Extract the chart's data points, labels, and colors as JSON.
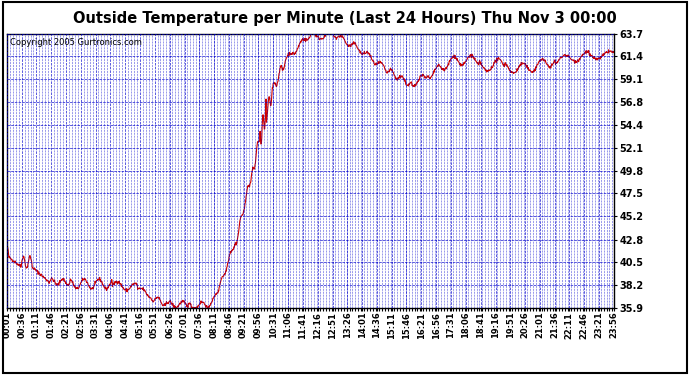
{
  "title": "Outside Temperature per Minute (Last 24 Hours) Thu Nov 3 00:00",
  "copyright": "Copyright 2005 Gurtronics.com",
  "background_color": "#ffffff",
  "plot_bg_color": "#ffffff",
  "line_color": "#cc0000",
  "grid_color": "#0000cc",
  "yticks": [
    35.9,
    38.2,
    40.5,
    42.8,
    45.2,
    47.5,
    49.8,
    52.1,
    54.4,
    56.8,
    59.1,
    61.4,
    63.7
  ],
  "ymin": 35.9,
  "ymax": 63.7,
  "xtick_labels": [
    "00:01",
    "00:36",
    "01:11",
    "01:46",
    "02:21",
    "02:56",
    "03:31",
    "04:06",
    "04:41",
    "05:16",
    "05:51",
    "06:26",
    "07:01",
    "07:36",
    "08:11",
    "08:46",
    "09:21",
    "09:56",
    "10:31",
    "11:06",
    "11:41",
    "12:16",
    "12:51",
    "13:26",
    "14:01",
    "14:36",
    "15:11",
    "15:46",
    "16:21",
    "16:56",
    "17:31",
    "18:06",
    "18:41",
    "19:16",
    "19:51",
    "20:26",
    "21:01",
    "21:36",
    "22:11",
    "22:46",
    "23:21",
    "23:56"
  ]
}
